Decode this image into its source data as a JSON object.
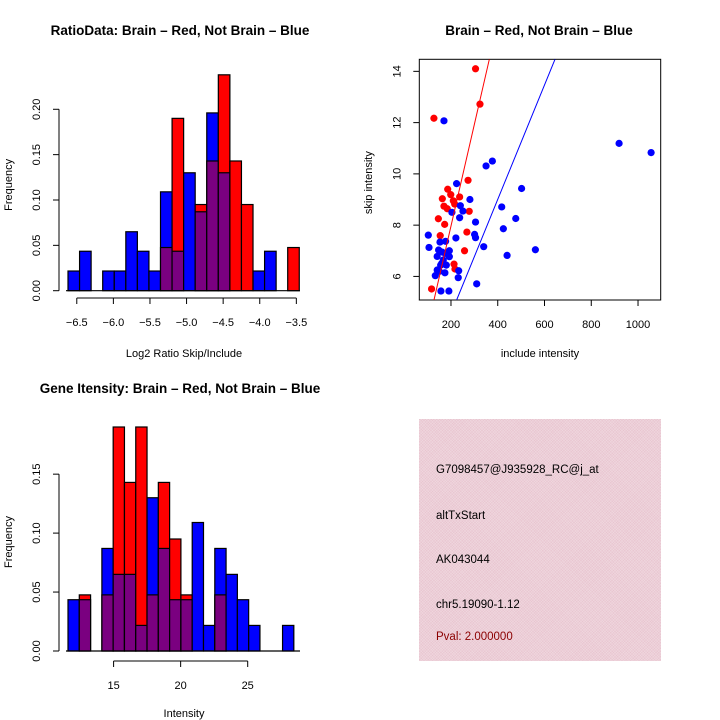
{
  "colors": {
    "red": "#ff0000",
    "blue": "#0000ff",
    "overlap": "#7a0080",
    "info_bg": "#e8c4cf",
    "pval_text": "#8b0000"
  },
  "chart_data": [
    {
      "type": "bar",
      "subtype": "overlaid-histogram",
      "title": "RatioData: Brain – Red, Not Brain – Blue",
      "xlabel": "Log2 Ratio Skip/Include",
      "ylabel": "Frequency",
      "xlim": [
        -6.62,
        -3.45
      ],
      "ylim": [
        0,
        0.24
      ],
      "xticks": [
        -6.5,
        -6.0,
        -5.5,
        -5.0,
        -4.5,
        -4.0,
        -3.5
      ],
      "xtick_labels": [
        "-6.5",
        "-6.0",
        "-5.5",
        "-5.0",
        "-4.5",
        "-4.0",
        "-3.5"
      ],
      "yticks": [
        0.0,
        0.05,
        0.1,
        0.15,
        0.2
      ],
      "ytick_labels": [
        "0.00",
        "0.05",
        "0.10",
        "0.15",
        "0.20"
      ],
      "bin_start": -6.62,
      "bin_width": 0.158,
      "series": [
        {
          "name": "Not Brain",
          "color": "blue",
          "values": [
            0.0217,
            0.0435,
            0,
            0.0217,
            0.0217,
            0.065,
            0.0435,
            0.0217,
            0.109,
            0.0435,
            0.13,
            0.087,
            0.196,
            0.13,
            0,
            0,
            0.0217,
            0.0435,
            0,
            0
          ]
        },
        {
          "name": "Brain",
          "color": "red",
          "values": [
            0,
            0,
            0,
            0,
            0,
            0,
            0,
            0,
            0.0476,
            0.19,
            0,
            0.095,
            0.143,
            0.238,
            0.143,
            0.095,
            0,
            0,
            0,
            0.0476
          ]
        }
      ]
    },
    {
      "type": "scatter",
      "title": "Brain – Red, Not Brain – Blue",
      "xlabel": "include intensity",
      "ylabel": "skip intensity",
      "xlim": [
        64.5,
        1097
      ],
      "ylim": [
        5.08,
        14.47
      ],
      "xticks": [
        200,
        400,
        600,
        800,
        1000
      ],
      "xtick_labels": [
        "200",
        "400",
        "600",
        "800",
        "1000"
      ],
      "yticks": [
        6,
        8,
        10,
        12,
        14
      ],
      "ytick_labels": [
        "6",
        "8",
        "10",
        "12",
        "14"
      ],
      "series": [
        {
          "name": "Brain",
          "color": "red",
          "points": [
            [
              305,
              14.1
            ],
            [
              324,
              12.72
            ],
            [
              127,
              12.17
            ],
            [
              273,
              9.75
            ],
            [
              186,
              9.4
            ],
            [
              163,
              9.03
            ],
            [
              199,
              9.19
            ],
            [
              237,
              9.1
            ],
            [
              210,
              8.95
            ],
            [
              216,
              8.82
            ],
            [
              170,
              8.74
            ],
            [
              184,
              8.64
            ],
            [
              278,
              8.54
            ],
            [
              146,
              8.25
            ],
            [
              173,
              8.03
            ],
            [
              268,
              7.73
            ],
            [
              154,
              7.59
            ],
            [
              258,
              7.0
            ],
            [
              213,
              6.48
            ],
            [
              217,
              6.29
            ],
            [
              117,
              5.51
            ]
          ],
          "fit_line": [
            [
              127.3,
              5.08
            ],
            [
              364,
              14.47
            ]
          ]
        },
        {
          "name": "Not Brain",
          "color": "blue",
          "points": [
            [
              170,
              12.07
            ],
            [
              919,
              11.19
            ],
            [
              1056,
              10.83
            ],
            [
              377,
              10.5
            ],
            [
              350,
              10.31
            ],
            [
              224,
              9.62
            ],
            [
              502,
              9.43
            ],
            [
              281,
              9.0
            ],
            [
              240,
              8.76
            ],
            [
              417,
              8.71
            ],
            [
              251,
              8.55
            ],
            [
              204,
              8.5
            ],
            [
              477,
              8.26
            ],
            [
              237,
              8.29
            ],
            [
              305,
              8.12
            ],
            [
              424,
              7.86
            ],
            [
              103,
              7.61
            ],
            [
              301,
              7.64
            ],
            [
              305,
              7.51
            ],
            [
              221,
              7.5
            ],
            [
              177,
              7.37
            ],
            [
              153,
              7.34
            ],
            [
              106,
              7.13
            ],
            [
              340,
              7.16
            ],
            [
              561,
              7.04
            ],
            [
              147,
              7.03
            ],
            [
              193,
              7.0
            ],
            [
              141,
              6.78
            ],
            [
              193,
              6.77
            ],
            [
              440,
              6.82
            ],
            [
              167,
              6.64
            ],
            [
              180,
              6.44
            ],
            [
              156,
              6.44
            ],
            [
              141,
              6.25
            ],
            [
              233,
              6.22
            ],
            [
              174,
              6.14
            ],
            [
              133,
              6.03
            ],
            [
              231,
              5.95
            ],
            [
              310,
              5.71
            ],
            [
              157,
              5.43
            ],
            [
              191,
              5.43
            ],
            [
              150,
              6.2
            ],
            [
              160,
              6.5
            ],
            [
              175,
              6.9
            ],
            [
              162,
              6.95
            ],
            [
              150,
              7.0
            ]
          ],
          "fit_line": [
            [
              224.2,
              5.08
            ],
            [
              644.9,
              14.47
            ]
          ]
        }
      ]
    },
    {
      "type": "bar",
      "subtype": "overlaid-histogram",
      "title": "Gene Itensity: Brain – Red, Not Brain – Blue",
      "xlabel": "Intensity",
      "ylabel": "Frequency",
      "xlim": [
        11.6,
        28.9
      ],
      "ylim": [
        0,
        0.19
      ],
      "xticks": [
        15,
        20,
        25
      ],
      "xtick_labels": [
        "15",
        "20",
        "25"
      ],
      "yticks": [
        0.0,
        0.05,
        0.1,
        0.15
      ],
      "ytick_labels": [
        "0.00",
        "0.05",
        "0.10",
        "0.15"
      ],
      "bin_start": 11.6,
      "bin_width": 0.842,
      "series": [
        {
          "name": "Not Brain",
          "color": "blue",
          "values": [
            0.0435,
            0.0435,
            0,
            0.087,
            0.065,
            0.065,
            0.0217,
            0.13,
            0.087,
            0.0435,
            0.0435,
            0.109,
            0.0217,
            0.087,
            0.065,
            0.0435,
            0.0217,
            0,
            0,
            0.0217
          ]
        },
        {
          "name": "Brain",
          "color": "red",
          "values": [
            0,
            0.0476,
            0,
            0.0476,
            0.19,
            0.143,
            0.19,
            0.0476,
            0.143,
            0.095,
            0.0476,
            0,
            0,
            0.0476,
            0,
            0,
            0,
            0,
            0,
            0
          ]
        }
      ]
    }
  ],
  "info_panel": {
    "probe_id": "G7098457@J935928_RC@j_at",
    "event_type": "altTxStart",
    "accession": "AK043044",
    "location": "chr5.19090-1.12",
    "pval": "Pval: 2.000000"
  }
}
